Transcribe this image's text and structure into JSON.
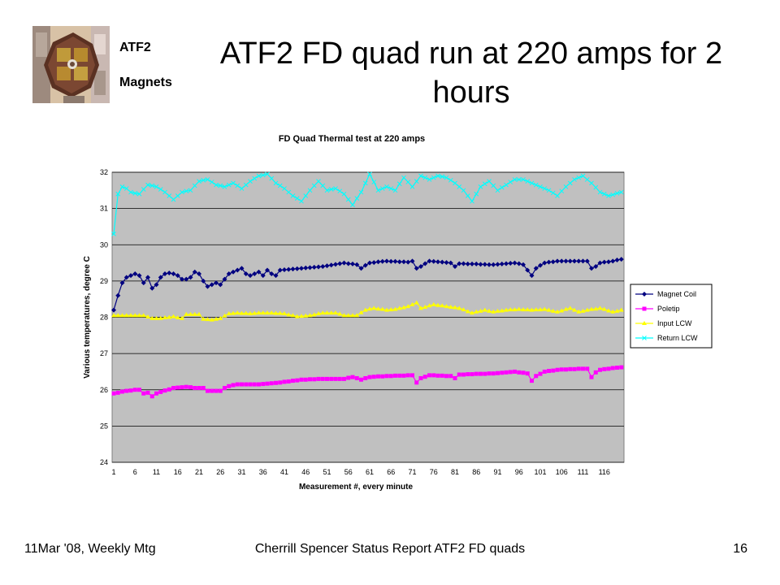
{
  "slide": {
    "title": "ATF2 FD quad run at 220 amps for 2 hours",
    "logo_line1": "ATF2",
    "logo_line2": "Magnets",
    "footer_left": "11Mar '08, Weekly Mtg",
    "footer_center": "Cherrill Spencer Status Report ATF2 FD quads",
    "page_number": "16"
  },
  "chart_data": {
    "type": "line",
    "title": "FD Quad Thermal test at 220 amps",
    "xlabel": "Measurement #, every minute",
    "ylabel": "Various temperatures, degree C",
    "ylim": [
      24,
      32
    ],
    "yticks": [
      24,
      25,
      26,
      27,
      28,
      29,
      30,
      31,
      32
    ],
    "xrange": [
      1,
      120
    ],
    "xticks": [
      1,
      6,
      11,
      16,
      21,
      26,
      31,
      36,
      41,
      46,
      51,
      56,
      61,
      66,
      71,
      76,
      81,
      86,
      91,
      96,
      101,
      106,
      111,
      116
    ],
    "grid": "horizontal",
    "legend_position": "right",
    "plot_background": "#c0c0c0",
    "series": [
      {
        "name": "Magnet Coil",
        "color": "#000080",
        "marker": "diamond",
        "anchors": [
          [
            1,
            28.2
          ],
          [
            2,
            28.6
          ],
          [
            3,
            28.95
          ],
          [
            4,
            29.1
          ],
          [
            5,
            29.15
          ],
          [
            6,
            29.2
          ],
          [
            7,
            29.15
          ],
          [
            8,
            28.95
          ],
          [
            9,
            29.1
          ],
          [
            10,
            28.8
          ],
          [
            11,
            28.9
          ],
          [
            12,
            29.1
          ],
          [
            13,
            29.2
          ],
          [
            14,
            29.22
          ],
          [
            15,
            29.2
          ],
          [
            16,
            29.15
          ],
          [
            17,
            29.05
          ],
          [
            18,
            29.05
          ],
          [
            19,
            29.1
          ],
          [
            20,
            29.25
          ],
          [
            21,
            29.2
          ],
          [
            22,
            29.0
          ],
          [
            23,
            28.85
          ],
          [
            24,
            28.9
          ],
          [
            25,
            28.95
          ],
          [
            26,
            28.9
          ],
          [
            27,
            29.05
          ],
          [
            28,
            29.2
          ],
          [
            29,
            29.25
          ],
          [
            30,
            29.3
          ],
          [
            31,
            29.35
          ],
          [
            32,
            29.2
          ],
          [
            33,
            29.15
          ],
          [
            34,
            29.2
          ],
          [
            35,
            29.25
          ],
          [
            36,
            29.15
          ],
          [
            37,
            29.3
          ],
          [
            38,
            29.2
          ],
          [
            39,
            29.15
          ],
          [
            40,
            29.3
          ],
          [
            45,
            29.35
          ],
          [
            50,
            29.4
          ],
          [
            55,
            29.5
          ],
          [
            58,
            29.45
          ],
          [
            59,
            29.35
          ],
          [
            61,
            29.5
          ],
          [
            65,
            29.55
          ],
          [
            70,
            29.52
          ],
          [
            71,
            29.55
          ],
          [
            72,
            29.35
          ],
          [
            73,
            29.4
          ],
          [
            75,
            29.55
          ],
          [
            80,
            29.5
          ],
          [
            81,
            29.4
          ],
          [
            82,
            29.48
          ],
          [
            90,
            29.45
          ],
          [
            95,
            29.5
          ],
          [
            97,
            29.45
          ],
          [
            98,
            29.3
          ],
          [
            99,
            29.15
          ],
          [
            100,
            29.35
          ],
          [
            102,
            29.5
          ],
          [
            105,
            29.55
          ],
          [
            110,
            29.55
          ],
          [
            112,
            29.55
          ],
          [
            113,
            29.35
          ],
          [
            114,
            29.4
          ],
          [
            115,
            29.5
          ],
          [
            118,
            29.55
          ],
          [
            120,
            29.6
          ]
        ]
      },
      {
        "name": "Poletip",
        "color": "#ff00ff",
        "marker": "square",
        "anchors": [
          [
            1,
            25.9
          ],
          [
            2,
            25.92
          ],
          [
            3,
            25.95
          ],
          [
            6,
            26.0
          ],
          [
            7,
            26.0
          ],
          [
            8,
            25.9
          ],
          [
            9,
            25.92
          ],
          [
            10,
            25.82
          ],
          [
            11,
            25.9
          ],
          [
            15,
            26.05
          ],
          [
            18,
            26.08
          ],
          [
            20,
            26.05
          ],
          [
            22,
            26.05
          ],
          [
            23,
            25.97
          ],
          [
            26,
            25.97
          ],
          [
            27,
            26.05
          ],
          [
            28,
            26.1
          ],
          [
            30,
            26.15
          ],
          [
            35,
            26.15
          ],
          [
            40,
            26.2
          ],
          [
            45,
            26.28
          ],
          [
            50,
            26.3
          ],
          [
            55,
            26.3
          ],
          [
            57,
            26.35
          ],
          [
            59,
            26.28
          ],
          [
            61,
            26.35
          ],
          [
            65,
            26.38
          ],
          [
            71,
            26.4
          ],
          [
            72,
            26.2
          ],
          [
            73,
            26.32
          ],
          [
            75,
            26.4
          ],
          [
            80,
            26.38
          ],
          [
            81,
            26.32
          ],
          [
            82,
            26.42
          ],
          [
            90,
            26.45
          ],
          [
            95,
            26.5
          ],
          [
            98,
            26.45
          ],
          [
            99,
            26.25
          ],
          [
            100,
            26.38
          ],
          [
            102,
            26.5
          ],
          [
            105,
            26.55
          ],
          [
            110,
            26.58
          ],
          [
            112,
            26.58
          ],
          [
            113,
            26.35
          ],
          [
            114,
            26.48
          ],
          [
            115,
            26.55
          ],
          [
            118,
            26.6
          ],
          [
            120,
            26.62
          ]
        ]
      },
      {
        "name": "Input LCW",
        "color": "#ffff00",
        "marker": "triangle",
        "anchors": [
          [
            1,
            28.05
          ],
          [
            3,
            28.05
          ],
          [
            5,
            28.05
          ],
          [
            8,
            28.05
          ],
          [
            10,
            27.97
          ],
          [
            12,
            27.97
          ],
          [
            15,
            28.02
          ],
          [
            17,
            27.97
          ],
          [
            18,
            28.08
          ],
          [
            21,
            28.08
          ],
          [
            22,
            27.95
          ],
          [
            24,
            27.93
          ],
          [
            26,
            27.97
          ],
          [
            28,
            28.1
          ],
          [
            30,
            28.12
          ],
          [
            33,
            28.1
          ],
          [
            35,
            28.12
          ],
          [
            38,
            28.12
          ],
          [
            41,
            28.1
          ],
          [
            44,
            28.02
          ],
          [
            47,
            28.05
          ],
          [
            50,
            28.12
          ],
          [
            53,
            28.12
          ],
          [
            55,
            28.05
          ],
          [
            58,
            28.05
          ],
          [
            60,
            28.2
          ],
          [
            62,
            28.25
          ],
          [
            65,
            28.2
          ],
          [
            67,
            28.22
          ],
          [
            70,
            28.3
          ],
          [
            72,
            28.4
          ],
          [
            73,
            28.25
          ],
          [
            76,
            28.35
          ],
          [
            79,
            28.3
          ],
          [
            82,
            28.25
          ],
          [
            85,
            28.12
          ],
          [
            88,
            28.2
          ],
          [
            90,
            28.15
          ],
          [
            93,
            28.2
          ],
          [
            96,
            28.22
          ],
          [
            99,
            28.2
          ],
          [
            102,
            28.22
          ],
          [
            105,
            28.15
          ],
          [
            108,
            28.25
          ],
          [
            110,
            28.15
          ],
          [
            112,
            28.2
          ],
          [
            115,
            28.25
          ],
          [
            118,
            28.15
          ],
          [
            120,
            28.2
          ]
        ]
      },
      {
        "name": "Return LCW",
        "color": "#00ffff",
        "marker": "x",
        "anchors": [
          [
            1,
            30.3
          ],
          [
            2,
            31.4
          ],
          [
            3,
            31.6
          ],
          [
            4,
            31.55
          ],
          [
            5,
            31.45
          ],
          [
            7,
            31.4
          ],
          [
            9,
            31.65
          ],
          [
            11,
            31.6
          ],
          [
            13,
            31.45
          ],
          [
            15,
            31.25
          ],
          [
            17,
            31.45
          ],
          [
            19,
            31.5
          ],
          [
            21,
            31.75
          ],
          [
            23,
            31.8
          ],
          [
            25,
            31.65
          ],
          [
            27,
            31.6
          ],
          [
            29,
            31.7
          ],
          [
            31,
            31.55
          ],
          [
            33,
            31.75
          ],
          [
            35,
            31.9
          ],
          [
            37,
            31.95
          ],
          [
            39,
            31.7
          ],
          [
            41,
            31.55
          ],
          [
            43,
            31.35
          ],
          [
            45,
            31.2
          ],
          [
            47,
            31.5
          ],
          [
            49,
            31.75
          ],
          [
            51,
            31.5
          ],
          [
            53,
            31.55
          ],
          [
            55,
            31.4
          ],
          [
            57,
            31.1
          ],
          [
            59,
            31.45
          ],
          [
            61,
            31.95
          ],
          [
            63,
            31.5
          ],
          [
            65,
            31.6
          ],
          [
            67,
            31.5
          ],
          [
            69,
            31.85
          ],
          [
            71,
            31.6
          ],
          [
            73,
            31.9
          ],
          [
            75,
            31.8
          ],
          [
            77,
            31.9
          ],
          [
            79,
            31.85
          ],
          [
            81,
            31.7
          ],
          [
            83,
            31.5
          ],
          [
            85,
            31.2
          ],
          [
            87,
            31.6
          ],
          [
            89,
            31.75
          ],
          [
            91,
            31.5
          ],
          [
            93,
            31.65
          ],
          [
            95,
            31.8
          ],
          [
            97,
            31.8
          ],
          [
            99,
            31.7
          ],
          [
            101,
            31.6
          ],
          [
            103,
            31.5
          ],
          [
            105,
            31.35
          ],
          [
            107,
            31.6
          ],
          [
            109,
            31.8
          ],
          [
            111,
            31.9
          ],
          [
            113,
            31.7
          ],
          [
            115,
            31.45
          ],
          [
            117,
            31.35
          ],
          [
            120,
            31.45
          ]
        ]
      }
    ]
  }
}
